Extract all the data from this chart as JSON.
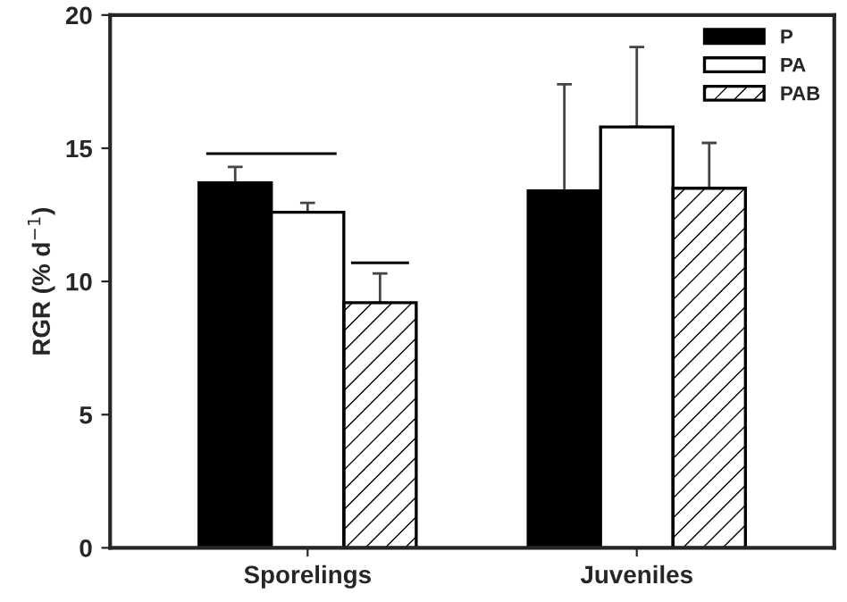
{
  "chart_data": {
    "type": "bar",
    "ylabel": "RGR (% d$^{−1}$)",
    "categories": [
      "Sporelings",
      "Juveniles"
    ],
    "series": [
      {
        "name": "P",
        "color": "#000000",
        "values": [
          13.7,
          13.4
        ],
        "errors": [
          [
            13.7,
            14.3
          ],
          [
            13.4,
            17.4
          ]
        ]
      },
      {
        "name": "PA",
        "color": "#ffffff",
        "values": [
          12.6,
          15.8
        ],
        "errors": [
          [
            12.6,
            12.95
          ],
          [
            15.8,
            18.8
          ]
        ]
      },
      {
        "name": "PAB",
        "color": "#000000",
        "values": [
          9.2,
          13.5
        ],
        "errors": [
          [
            9.2,
            10.3
          ],
          [
            13.5,
            15.2
          ]
        ]
      }
    ],
    "ylim": [
      0,
      20
    ],
    "yticks": [
      0,
      5,
      10,
      15,
      20
    ],
    "grid": false,
    "legend": "top right"
  }
}
